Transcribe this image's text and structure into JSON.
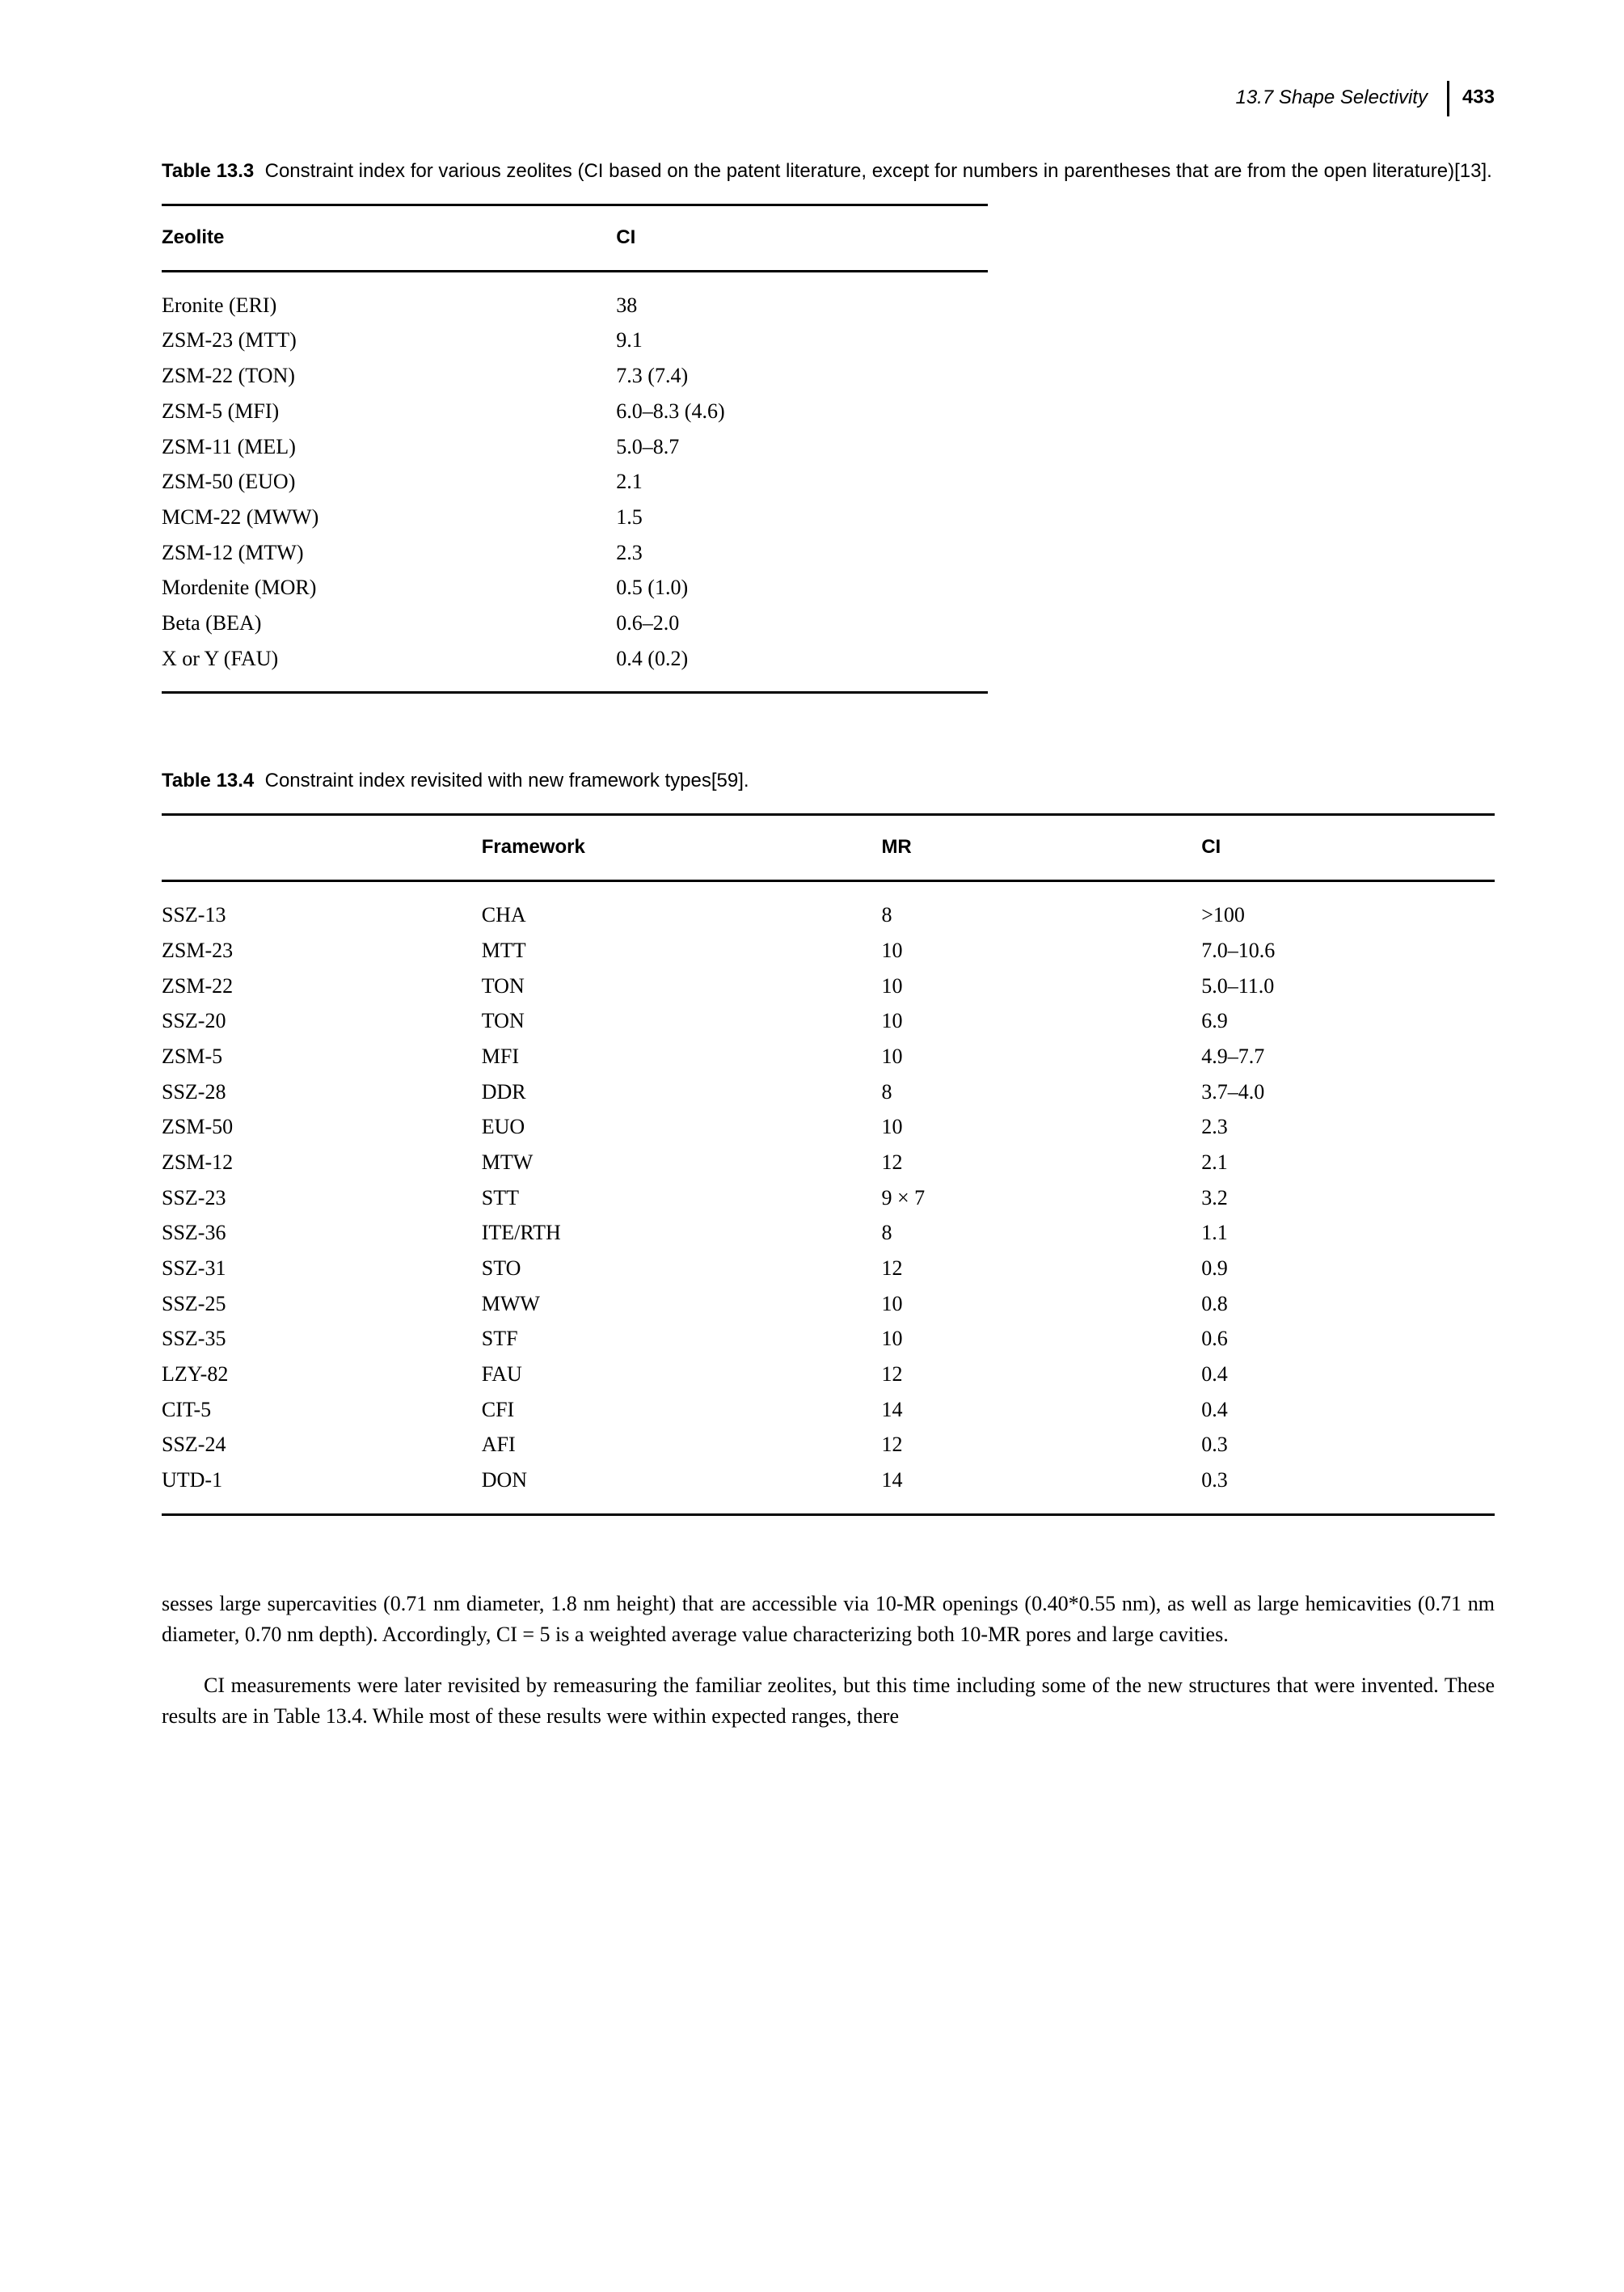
{
  "header": {
    "section": "13.7 Shape Selectivity",
    "page": "433"
  },
  "table1": {
    "caption_num": "Table 13.3",
    "caption_text": "Constraint index for various zeolites (CI based on the patent literature, except for numbers in parentheses that are from the open literature)[13].",
    "columns": [
      "Zeolite",
      "CI"
    ],
    "rows": [
      [
        "Eronite (ERI)",
        "38"
      ],
      [
        "ZSM-23 (MTT)",
        "9.1"
      ],
      [
        "ZSM-22 (TON)",
        "7.3 (7.4)"
      ],
      [
        "ZSM-5 (MFI)",
        "6.0–8.3 (4.6)"
      ],
      [
        "ZSM-11 (MEL)",
        "5.0–8.7"
      ],
      [
        "ZSM-50 (EUO)",
        "2.1"
      ],
      [
        "MCM-22 (MWW)",
        "1.5"
      ],
      [
        "ZSM-12 (MTW)",
        "2.3"
      ],
      [
        "Mordenite (MOR)",
        "0.5 (1.0)"
      ],
      [
        "Beta (BEA)",
        "0.6–2.0"
      ],
      [
        "X or Y (FAU)",
        "0.4 (0.2)"
      ]
    ],
    "col_widths": [
      "55%",
      "45%"
    ]
  },
  "table2": {
    "caption_num": "Table 13.4",
    "caption_text": "Constraint index revisited with new framework types[59].",
    "columns": [
      "",
      "Framework",
      "MR",
      "CI"
    ],
    "rows": [
      [
        "SSZ-13",
        "CHA",
        "8",
        ">100"
      ],
      [
        "ZSM-23",
        "MTT",
        "10",
        "7.0–10.6"
      ],
      [
        "ZSM-22",
        "TON",
        "10",
        "5.0–11.0"
      ],
      [
        "SSZ-20",
        "TON",
        "10",
        "6.9"
      ],
      [
        "ZSM-5",
        "MFI",
        "10",
        "4.9–7.7"
      ],
      [
        "SSZ-28",
        "DDR",
        "8",
        "3.7–4.0"
      ],
      [
        "ZSM-50",
        "EUO",
        "10",
        "2.3"
      ],
      [
        "ZSM-12",
        "MTW",
        "12",
        "2.1"
      ],
      [
        "SSZ-23",
        "STT",
        "9 × 7",
        "3.2"
      ],
      [
        "SSZ-36",
        "ITE/RTH",
        "8",
        "1.1"
      ],
      [
        "SSZ-31",
        "STO",
        "12",
        "0.9"
      ],
      [
        "SSZ-25",
        "MWW",
        "10",
        "0.8"
      ],
      [
        "SSZ-35",
        "STF",
        "10",
        "0.6"
      ],
      [
        "LZY-82",
        "FAU",
        "12",
        "0.4"
      ],
      [
        "CIT-5",
        "CFI",
        "14",
        "0.4"
      ],
      [
        "SSZ-24",
        "AFI",
        "12",
        "0.3"
      ],
      [
        "UTD-1",
        "DON",
        "14",
        "0.3"
      ]
    ],
    "col_widths": [
      "24%",
      "30%",
      "24%",
      "22%"
    ]
  },
  "paragraphs": {
    "p1": "sesses large supercavities (0.71 nm diameter, 1.8 nm height) that are accessible via 10-MR openings (0.40*0.55 nm), as well as large hemicavities (0.71 nm diameter, 0.70 nm depth). Accordingly, CI = 5 is a weighted average value characterizing both 10-MR pores and large cavities.",
    "p2": "CI measurements were later revisited by remeasuring the familiar zeolites, but this time including some of the new structures that were invented. These results are in Table 13.4. While most of these results were within expected ranges, there"
  }
}
